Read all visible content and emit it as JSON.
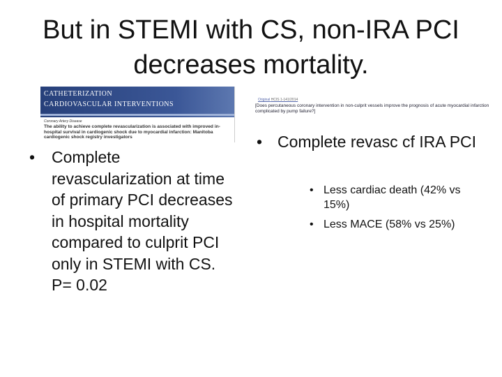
{
  "slide": {
    "title": "But in STEMI with CS, non-IRA PCI decreases mortality."
  },
  "clip_left": {
    "journal_line1": "CATHETERIZATION",
    "journal_line2": "CARDIOVASCULAR INTERVENTIONS",
    "category": "Coronary Artery Disease",
    "article_title": "The ability to achieve complete revascularization is associated with improved in-hospital survival in cardiogenic shock due to myocardial infarction: Manitoba cardiogenic shock registry investigators"
  },
  "clip_right": {
    "link": "Original",
    "ref": "HCIS 1-141/2014",
    "heading": "[Does percutaneous coronary intervention in non-culprit vessels improve the prognosis of acute myocardial infarction complicated by pump failure?]"
  },
  "left_bullet": {
    "marker": "•",
    "text": "Complete revascularization at time of primary PCI decreases in hospital mortality compared to culprit PCI only in STEMI with CS. P= 0.02"
  },
  "right_bullet": {
    "marker": "•",
    "text": "Complete revasc cf IRA PCI"
  },
  "sub_bullets": [
    {
      "marker": "•",
      "text": "Less cardiac death (42% vs 15%)"
    },
    {
      "marker": "•",
      "text": "Less MACE (58% vs 25%)"
    }
  ]
}
